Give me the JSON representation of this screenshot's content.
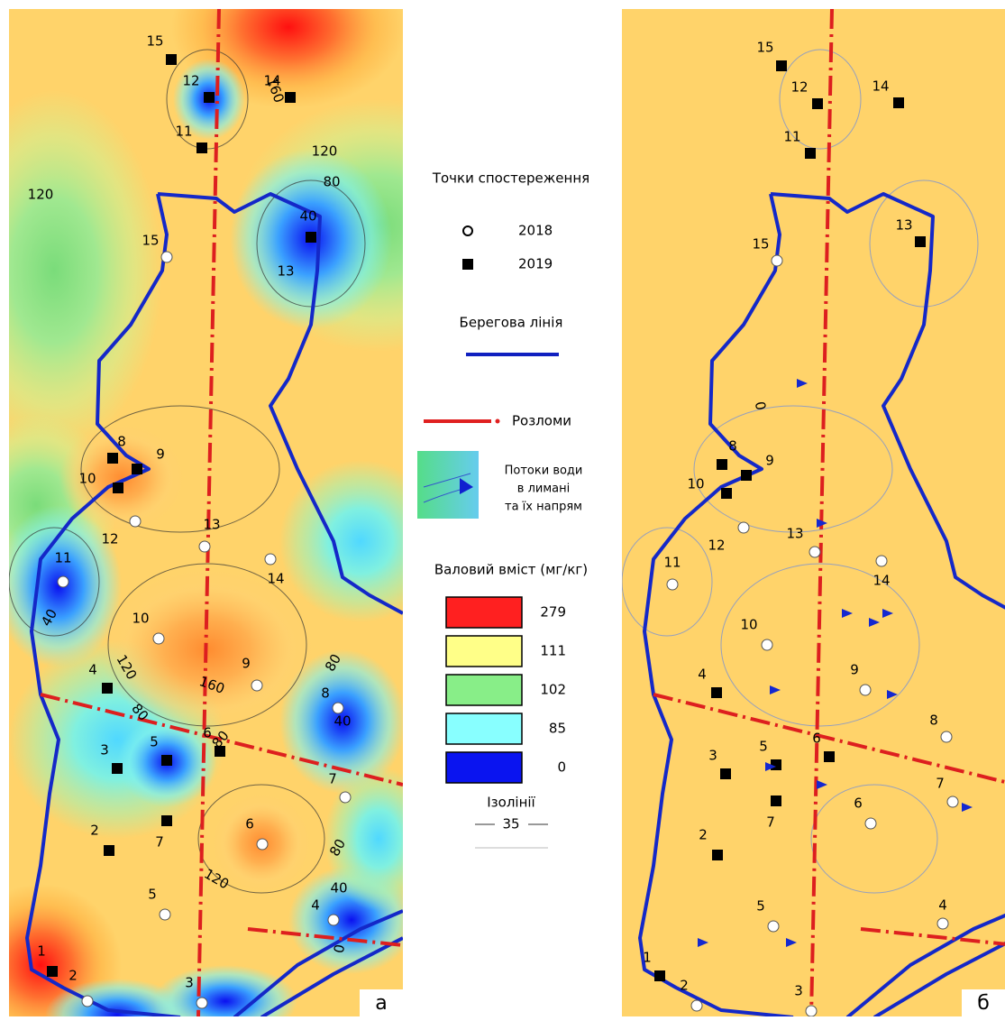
{
  "panels": [
    {
      "letter": "а",
      "points": [
        {
          "label": "15",
          "year": "2019"
        },
        {
          "label": "12",
          "year": "2019"
        },
        {
          "label": "14",
          "year": "2019"
        },
        {
          "label": "11",
          "year": "2019"
        },
        {
          "label": "13",
          "year": "2019"
        },
        {
          "label": "15",
          "year": "2018"
        },
        {
          "label": "8",
          "year": "2019"
        },
        {
          "label": "9",
          "year": "2019"
        },
        {
          "label": "10",
          "year": "2019"
        },
        {
          "label": "12",
          "year": "2018"
        },
        {
          "label": "13",
          "year": "2018"
        },
        {
          "label": "14",
          "year": "2018"
        },
        {
          "label": "11",
          "year": "2018"
        },
        {
          "label": "10",
          "year": "2018"
        },
        {
          "label": "9",
          "year": "2018"
        },
        {
          "label": "4",
          "year": "2019"
        },
        {
          "label": "8",
          "year": "2018"
        },
        {
          "label": "6",
          "year": "2019"
        },
        {
          "label": "5",
          "year": "2019"
        },
        {
          "label": "3",
          "year": "2019"
        },
        {
          "label": "7",
          "year": "2018"
        },
        {
          "label": "7",
          "year": "2019"
        },
        {
          "label": "2",
          "year": "2019"
        },
        {
          "label": "6",
          "year": "2018"
        },
        {
          "label": "5",
          "year": "2018"
        },
        {
          "label": "4",
          "year": "2018"
        },
        {
          "label": "1",
          "year": "2019"
        },
        {
          "label": "2",
          "year": "2018"
        },
        {
          "label": "3",
          "year": "2018"
        }
      ],
      "isolines": [
        "160",
        "120",
        "120",
        "80",
        "40",
        "40",
        "120",
        "160",
        "80",
        "80",
        "40",
        "80",
        "120",
        "80",
        "40",
        "0"
      ]
    },
    {
      "letter": "б",
      "points": [
        {
          "label": "15",
          "year": "2019"
        },
        {
          "label": "12",
          "year": "2019"
        },
        {
          "label": "14",
          "year": "2019"
        },
        {
          "label": "11",
          "year": "2019"
        },
        {
          "label": "13",
          "year": "2019"
        },
        {
          "label": "15",
          "year": "2018"
        },
        {
          "label": "8",
          "year": "2019"
        },
        {
          "label": "9",
          "year": "2019"
        },
        {
          "label": "10",
          "year": "2019"
        },
        {
          "label": "12",
          "year": "2018"
        },
        {
          "label": "13",
          "year": "2018"
        },
        {
          "label": "14",
          "year": "2018"
        },
        {
          "label": "11",
          "year": "2018"
        },
        {
          "label": "10",
          "year": "2018"
        },
        {
          "label": "9",
          "year": "2018"
        },
        {
          "label": "4",
          "year": "2019"
        },
        {
          "label": "8",
          "year": "2018"
        },
        {
          "label": "6",
          "year": "2019"
        },
        {
          "label": "5",
          "year": "2019"
        },
        {
          "label": "3",
          "year": "2019"
        },
        {
          "label": "7",
          "year": "2018"
        },
        {
          "label": "7",
          "year": "2019"
        },
        {
          "label": "2",
          "year": "2019"
        },
        {
          "label": "6",
          "year": "2018"
        },
        {
          "label": "5",
          "year": "2018"
        },
        {
          "label": "4",
          "year": "2018"
        },
        {
          "label": "1",
          "year": "2019"
        },
        {
          "label": "2",
          "year": "2018"
        },
        {
          "label": "3",
          "year": "2018"
        }
      ],
      "isolines": [
        "0"
      ]
    }
  ],
  "legend": {
    "points_title": "Точки спостереження",
    "year_old": "2018",
    "year_new": "2019",
    "shore": "Берегова лінія",
    "faults": "Розломи",
    "flows": [
      "Потоки води",
      "в лимані",
      "та їх напрям"
    ],
    "scale_title": "Валовий вміст (мг/кг)",
    "scale": [
      {
        "value": 279,
        "color": "#ff2020"
      },
      {
        "value": 111,
        "color": "#ffff88"
      },
      {
        "value": 102,
        "color": "#88ee88"
      },
      {
        "value": 85,
        "color": "#88ffff"
      },
      {
        "value": 0,
        "color": "#0a14f0"
      }
    ],
    "isoline_title": "Ізолінії",
    "isoline_value": 35
  }
}
